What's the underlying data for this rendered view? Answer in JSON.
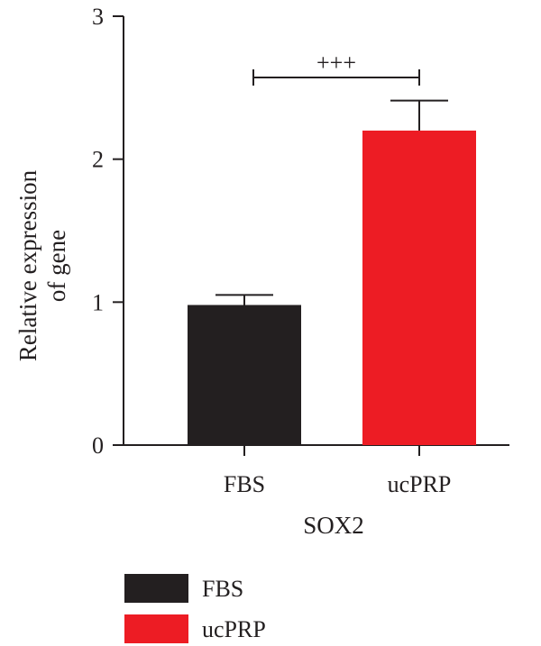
{
  "chart_data": {
    "type": "bar",
    "categories": [
      "FBS",
      "ucPRP"
    ],
    "values": [
      0.98,
      2.2
    ],
    "errors": [
      0.07,
      0.21
    ],
    "ylim": [
      0,
      3
    ],
    "yticks": [
      0,
      1,
      2,
      3
    ],
    "ylabel_line1": "Relative expression",
    "ylabel_line2": "of gene",
    "xlabel": "SOX2",
    "significance": {
      "label": "+++",
      "between": [
        "FBS",
        "ucPRP"
      ]
    },
    "colors": [
      "#231f20",
      "#ed1c24"
    ],
    "legend": [
      {
        "label": "FBS",
        "color": "#231f20"
      },
      {
        "label": "ucPRP",
        "color": "#ed1c24"
      }
    ],
    "legend_position": "bottom-left",
    "grid": false
  }
}
